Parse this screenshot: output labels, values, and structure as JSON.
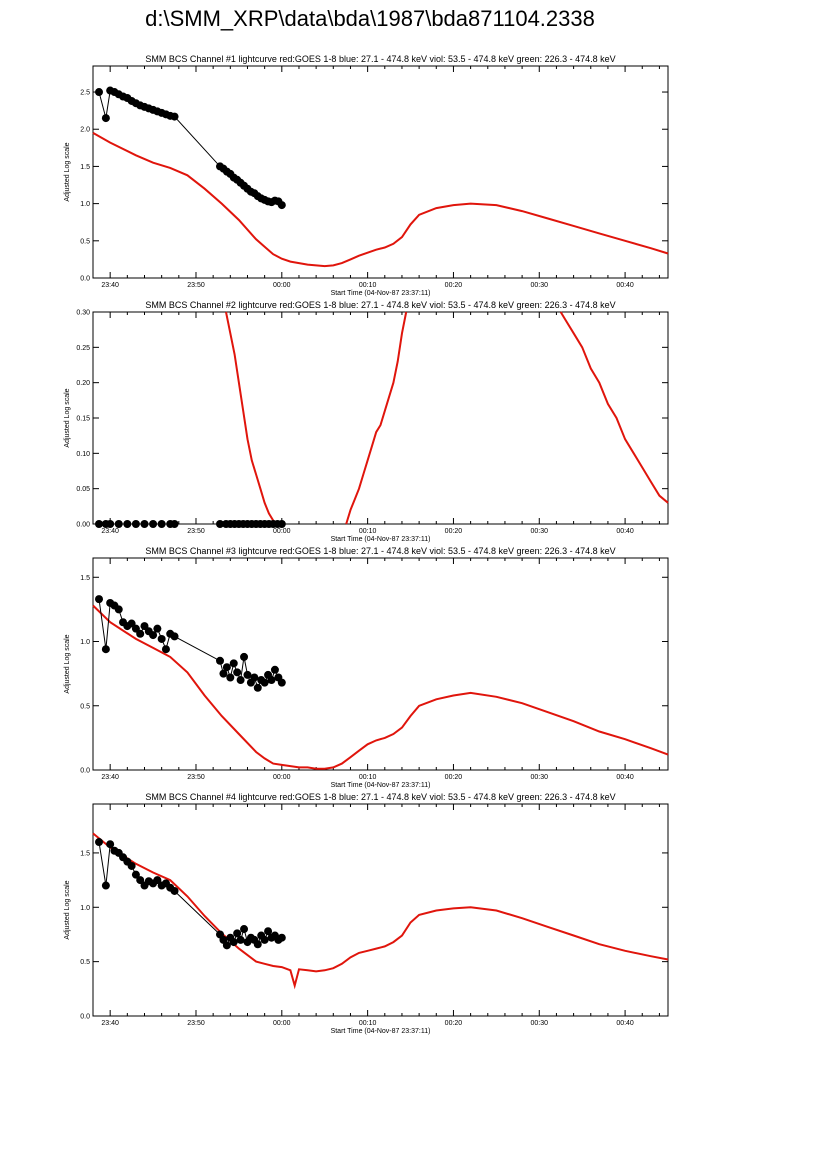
{
  "page_title": "d:\\SMM_XRP\\data\\bda\\1987\\bda871104.2338",
  "chart_data": [
    {
      "type": "line",
      "title": "SMM BCS Channel #1 lightcurve  red:GOES 1-8  blue: 27.1 - 474.8 keV  viol: 53.5 - 474.8 keV  green: 226.3 - 474.8 keV",
      "xlabel": "Start Time (04-Nov-87 23:37:11)",
      "ylabel": "Adjusted Log scale",
      "xlim": [
        -22,
        45
      ],
      "ylim": [
        0,
        2.85
      ],
      "yticks": [
        0.0,
        0.5,
        1.0,
        1.5,
        2.0,
        2.5
      ],
      "ytick_labels": [
        "0.0",
        "0.5",
        "1.0",
        "1.5",
        "2.0",
        "2.5"
      ],
      "xticks": [
        -20,
        -10,
        0,
        10,
        20,
        30,
        40
      ],
      "xtick_labels": [
        "23:40",
        "23:50",
        "00:00",
        "00:10",
        "00:20",
        "00:30",
        "00:40"
      ],
      "series": [
        {
          "color": "#e0150c",
          "style": "line",
          "x": [
            -22,
            -20,
            -17,
            -15,
            -13,
            -11,
            -9,
            -7,
            -5,
            -3,
            -2,
            -1,
            0,
            1,
            2,
            3,
            4,
            5,
            6,
            7,
            8,
            9,
            10,
            11,
            12,
            13,
            14,
            15,
            16,
            18,
            20,
            22,
            25,
            28,
            31,
            34,
            37,
            40,
            43,
            45
          ],
          "y": [
            1.95,
            1.82,
            1.65,
            1.55,
            1.48,
            1.38,
            1.2,
            1.0,
            0.78,
            0.52,
            0.42,
            0.32,
            0.26,
            0.22,
            0.2,
            0.18,
            0.17,
            0.16,
            0.17,
            0.2,
            0.25,
            0.3,
            0.34,
            0.38,
            0.41,
            0.46,
            0.55,
            0.72,
            0.85,
            0.94,
            0.98,
            1.0,
            0.98,
            0.9,
            0.8,
            0.7,
            0.6,
            0.5,
            0.4,
            0.33
          ]
        },
        {
          "color": "#000000",
          "style": "marker-line",
          "x": [
            -21.3,
            -20.5,
            -20,
            -19.5,
            -19,
            -18.5,
            -18,
            -17.5,
            -17,
            -16.5,
            -16,
            -15.5,
            -15,
            -14.5,
            -14,
            -13.5,
            -13,
            -12.5,
            -7.2,
            -6.8,
            -6.4,
            -6,
            -5.6,
            -5.2,
            -4.8,
            -4.4,
            -4,
            -3.6,
            -3.2,
            -2.8,
            -2.4,
            -2,
            -1.6,
            -1.2,
            -0.8,
            -0.4,
            0
          ],
          "y": [
            2.5,
            2.15,
            2.52,
            2.5,
            2.47,
            2.44,
            2.42,
            2.38,
            2.35,
            2.32,
            2.3,
            2.28,
            2.26,
            2.24,
            2.22,
            2.2,
            2.18,
            2.17,
            1.5,
            1.47,
            1.43,
            1.4,
            1.35,
            1.32,
            1.28,
            1.24,
            1.2,
            1.16,
            1.14,
            1.1,
            1.07,
            1.05,
            1.03,
            1.02,
            1.04,
            1.03,
            0.98
          ]
        }
      ]
    },
    {
      "type": "line",
      "title": "SMM BCS Channel #2 lightcurve  red:GOES 1-8  blue: 27.1 - 474.8 keV  viol: 53.5 - 474.8 keV  green: 226.3 - 474.8 keV",
      "xlabel": "Start Time (04-Nov-87 23:37:11)",
      "ylabel": "Adjusted Log scale",
      "xlim": [
        -22,
        45
      ],
      "ylim": [
        0,
        0.3
      ],
      "yticks": [
        0.0,
        0.05,
        0.1,
        0.15,
        0.2,
        0.25,
        0.3
      ],
      "ytick_labels": [
        "0.00",
        "0.05",
        "0.10",
        "0.15",
        "0.20",
        "0.25",
        "0.30"
      ],
      "xticks": [
        -20,
        -10,
        0,
        10,
        20,
        30,
        40
      ],
      "xtick_labels": [
        "23:40",
        "23:50",
        "00:00",
        "00:10",
        "00:20",
        "00:30",
        "00:40"
      ],
      "series": [
        {
          "color": "#e0150c",
          "style": "line",
          "x": [
            -6.5,
            -6,
            -5.5,
            -5,
            -4.5,
            -4,
            -3.5,
            -3,
            -2.5,
            -2,
            -1.5,
            -1,
            -0.5
          ],
          "y": [
            0.3,
            0.27,
            0.24,
            0.2,
            0.16,
            0.12,
            0.09,
            0.07,
            0.05,
            0.03,
            0.015,
            0.005,
            0.0
          ]
        },
        {
          "color": "#e0150c",
          "style": "line",
          "x": [
            7.5,
            8,
            8.5,
            9,
            9.5,
            10,
            10.5,
            11,
            11.5,
            12,
            12.5,
            13,
            13.5,
            14,
            14.5
          ],
          "y": [
            0.0,
            0.02,
            0.035,
            0.05,
            0.07,
            0.09,
            0.11,
            0.13,
            0.14,
            0.16,
            0.18,
            0.2,
            0.23,
            0.27,
            0.3
          ]
        },
        {
          "color": "#e0150c",
          "style": "line",
          "x": [
            32.5,
            33,
            34,
            35,
            36,
            37,
            38,
            39,
            40,
            41,
            42,
            43,
            44,
            45
          ],
          "y": [
            0.3,
            0.29,
            0.27,
            0.25,
            0.22,
            0.2,
            0.17,
            0.15,
            0.12,
            0.1,
            0.08,
            0.06,
            0.04,
            0.03
          ]
        },
        {
          "color": "#000000",
          "style": "marker-line",
          "x": [
            -21.3,
            -20.5,
            -20,
            -19,
            -18,
            -17,
            -16,
            -15,
            -14,
            -13,
            -12.5,
            -7.2,
            -6.5,
            -6,
            -5.5,
            -5,
            -4.5,
            -4,
            -3.5,
            -3,
            -2.5,
            -2,
            -1.5,
            -1,
            -0.5,
            0
          ],
          "y": [
            0,
            0,
            0,
            0,
            0,
            0,
            0,
            0,
            0,
            0,
            0,
            0,
            0,
            0,
            0,
            0,
            0,
            0,
            0,
            0,
            0,
            0,
            0,
            0,
            0,
            0
          ]
        }
      ]
    },
    {
      "type": "line",
      "title": "SMM BCS Channel #3 lightcurve  red:GOES 1-8  blue: 27.1 - 474.8 keV  viol: 53.5 - 474.8 keV  green: 226.3 - 474.8 keV",
      "xlabel": "Start Time (04-Nov-87 23:37:11)",
      "ylabel": "Adjusted Log scale",
      "xlim": [
        -22,
        45
      ],
      "ylim": [
        0,
        1.65
      ],
      "yticks": [
        0.0,
        0.5,
        1.0,
        1.5
      ],
      "ytick_labels": [
        "0.0",
        "0.5",
        "1.0",
        "1.5"
      ],
      "xticks": [
        -20,
        -10,
        0,
        10,
        20,
        30,
        40
      ],
      "xtick_labels": [
        "23:40",
        "23:50",
        "00:00",
        "00:10",
        "00:20",
        "00:30",
        "00:40"
      ],
      "series": [
        {
          "color": "#e0150c",
          "style": "line",
          "x": [
            -22,
            -20,
            -17,
            -15,
            -13,
            -11,
            -9,
            -7,
            -5,
            -3,
            -2,
            -1,
            0,
            1,
            2,
            3,
            4,
            5,
            6,
            7,
            8,
            9,
            10,
            11,
            12,
            13,
            14,
            15,
            16,
            18,
            20,
            22,
            25,
            28,
            31,
            34,
            37,
            40,
            43,
            45
          ],
          "y": [
            1.28,
            1.15,
            1.02,
            0.95,
            0.88,
            0.76,
            0.58,
            0.42,
            0.28,
            0.14,
            0.09,
            0.05,
            0.04,
            0.03,
            0.02,
            0.02,
            0.01,
            0.01,
            0.02,
            0.05,
            0.1,
            0.15,
            0.2,
            0.23,
            0.25,
            0.28,
            0.33,
            0.42,
            0.5,
            0.55,
            0.58,
            0.6,
            0.57,
            0.52,
            0.45,
            0.38,
            0.3,
            0.24,
            0.17,
            0.12
          ]
        },
        {
          "color": "#000000",
          "style": "marker-line",
          "x": [
            -21.3,
            -20.5,
            -20,
            -19.5,
            -19,
            -18.5,
            -18,
            -17.5,
            -17,
            -16.5,
            -16,
            -15.5,
            -15,
            -14.5,
            -14,
            -13.5,
            -13,
            -12.5,
            -7.2,
            -6.8,
            -6.4,
            -6,
            -5.6,
            -5.2,
            -4.8,
            -4.4,
            -4,
            -3.6,
            -3.2,
            -2.8,
            -2.4,
            -2,
            -1.6,
            -1.2,
            -0.8,
            -0.4,
            0
          ],
          "y": [
            1.33,
            0.94,
            1.3,
            1.28,
            1.25,
            1.15,
            1.12,
            1.14,
            1.1,
            1.06,
            1.12,
            1.08,
            1.05,
            1.1,
            1.02,
            0.94,
            1.06,
            1.04,
            0.85,
            0.75,
            0.8,
            0.72,
            0.83,
            0.76,
            0.7,
            0.88,
            0.74,
            0.68,
            0.72,
            0.64,
            0.7,
            0.68,
            0.74,
            0.7,
            0.78,
            0.72,
            0.68
          ]
        }
      ]
    },
    {
      "type": "line",
      "title": "SMM BCS Channel #4 lightcurve  red:GOES 1-8  blue: 27.1 - 474.8 keV  viol: 53.5 - 474.8 keV  green: 226.3 - 474.8 keV",
      "xlabel": "Start Time (04-Nov-87 23:37:11)",
      "ylabel": "Adjusted Log scale",
      "xlim": [
        -22,
        45
      ],
      "ylim": [
        0,
        1.95
      ],
      "yticks": [
        0.0,
        0.5,
        1.0,
        1.5
      ],
      "ytick_labels": [
        "0.0",
        "0.5",
        "1.0",
        "1.5"
      ],
      "xticks": [
        -20,
        -10,
        0,
        10,
        20,
        30,
        40
      ],
      "xtick_labels": [
        "23:40",
        "23:50",
        "00:00",
        "00:10",
        "00:20",
        "00:30",
        "00:40"
      ],
      "series": [
        {
          "color": "#e0150c",
          "style": "line",
          "x": [
            -22,
            -20,
            -17,
            -15,
            -13,
            -11,
            -9,
            -7,
            -5,
            -3,
            -2,
            -1,
            0,
            1,
            1.5,
            2,
            3,
            4,
            5,
            6,
            7,
            8,
            9,
            10,
            11,
            12,
            13,
            14,
            15,
            16,
            18,
            20,
            22,
            25,
            28,
            31,
            34,
            37,
            40,
            43,
            45
          ],
          "y": [
            1.68,
            1.55,
            1.4,
            1.32,
            1.25,
            1.1,
            0.92,
            0.76,
            0.62,
            0.5,
            0.48,
            0.46,
            0.45,
            0.42,
            0.28,
            0.43,
            0.42,
            0.41,
            0.42,
            0.44,
            0.48,
            0.54,
            0.58,
            0.6,
            0.62,
            0.64,
            0.68,
            0.74,
            0.86,
            0.93,
            0.97,
            0.99,
            1.0,
            0.97,
            0.9,
            0.82,
            0.74,
            0.66,
            0.6,
            0.55,
            0.52
          ]
        },
        {
          "color": "#000000",
          "style": "marker-line",
          "x": [
            -21.3,
            -20.5,
            -20,
            -19.5,
            -19,
            -18.5,
            -18,
            -17.5,
            -17,
            -16.5,
            -16,
            -15.5,
            -15,
            -14.5,
            -14,
            -13.5,
            -13,
            -12.5,
            -7.2,
            -6.8,
            -6.4,
            -6,
            -5.6,
            -5.2,
            -4.8,
            -4.4,
            -4,
            -3.6,
            -3.2,
            -2.8,
            -2.4,
            -2,
            -1.6,
            -1.2,
            -0.8,
            -0.4,
            0
          ],
          "y": [
            1.6,
            1.2,
            1.58,
            1.52,
            1.5,
            1.46,
            1.42,
            1.38,
            1.3,
            1.25,
            1.2,
            1.24,
            1.22,
            1.25,
            1.2,
            1.22,
            1.18,
            1.15,
            0.75,
            0.7,
            0.65,
            0.72,
            0.68,
            0.76,
            0.7,
            0.8,
            0.68,
            0.72,
            0.7,
            0.66,
            0.74,
            0.7,
            0.78,
            0.72,
            0.74,
            0.7,
            0.72
          ]
        }
      ]
    }
  ]
}
